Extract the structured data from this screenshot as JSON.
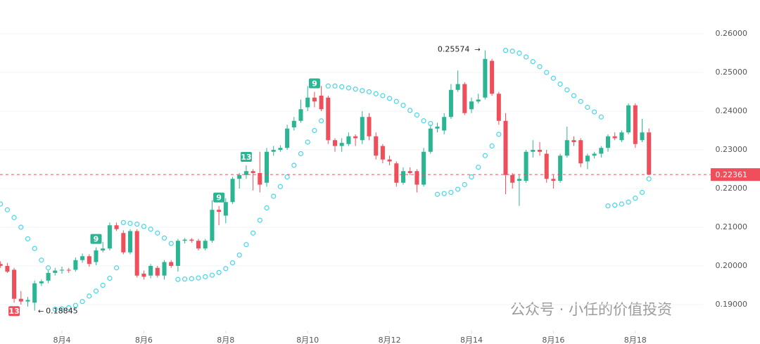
{
  "chart_data": {
    "type": "candlestick",
    "x": [
      2.5,
      2.667,
      2.833,
      3,
      3.167,
      3.333,
      3.5,
      3.667,
      3.833,
      4,
      4.167,
      4.333,
      4.5,
      4.667,
      4.833,
      5,
      5.167,
      5.333,
      5.5,
      5.667,
      5.833,
      6,
      6.167,
      6.333,
      6.5,
      6.667,
      6.833,
      7,
      7.167,
      7.333,
      7.5,
      7.667,
      7.833,
      8,
      8.167,
      8.333,
      8.5,
      8.667,
      8.833,
      9,
      9.167,
      9.333,
      9.5,
      9.667,
      9.833,
      10,
      10.167,
      10.333,
      10.5,
      10.667,
      10.833,
      11,
      11.167,
      11.333,
      11.5,
      11.667,
      11.833,
      12,
      12.167,
      12.333,
      12.5,
      12.667,
      12.833,
      13,
      13.167,
      13.333,
      13.5,
      13.667,
      13.833,
      14,
      14.167,
      14.333,
      14.5,
      14.667,
      14.833,
      15,
      15.167,
      15.333,
      15.5,
      15.667,
      15.833,
      16,
      16.167,
      16.333,
      16.5,
      16.667,
      16.833,
      17,
      17.167,
      17.333,
      17.5,
      17.667,
      17.833,
      18,
      18.167,
      18.333
    ],
    "candles": [
      [
        0.2005,
        0.2012,
        0.1995,
        0.2
      ],
      [
        0.2,
        0.2008,
        0.1982,
        0.1985
      ],
      [
        0.199,
        0.1995,
        0.1905,
        0.1915
      ],
      [
        0.1915,
        0.1935,
        0.19,
        0.1908
      ],
      [
        0.1908,
        0.192,
        0.1895,
        0.1912
      ],
      [
        0.1905,
        0.1962,
        0.18845,
        0.1955
      ],
      [
        0.1955,
        0.1965,
        0.1948,
        0.196
      ],
      [
        0.1962,
        0.199,
        0.1955,
        0.1982
      ],
      [
        0.1982,
        0.1995,
        0.1975,
        0.1988
      ],
      [
        0.1988,
        0.1998,
        0.198,
        0.199
      ],
      [
        0.199,
        0.1995,
        0.1982,
        0.1988
      ],
      [
        0.199,
        0.2022,
        0.1985,
        0.2015
      ],
      [
        0.2015,
        0.2032,
        0.2008,
        0.2025
      ],
      [
        0.2025,
        0.203,
        0.1998,
        0.2005
      ],
      [
        0.201,
        0.2048,
        0.2002,
        0.204
      ],
      [
        0.204,
        0.2062,
        0.2035,
        0.2045
      ],
      [
        0.2045,
        0.2112,
        0.204,
        0.2105
      ],
      [
        0.2105,
        0.2112,
        0.209,
        0.2095
      ],
      [
        0.2085,
        0.2092,
        0.203,
        0.2035
      ],
      [
        0.2035,
        0.2095,
        0.203,
        0.209
      ],
      [
        0.209,
        0.2095,
        0.197,
        0.1975
      ],
      [
        0.198,
        0.1988,
        0.1965,
        0.1972
      ],
      [
        0.1975,
        0.2005,
        0.1968,
        0.2
      ],
      [
        0.1995,
        0.2,
        0.197,
        0.1975
      ],
      [
        0.1975,
        0.2015,
        0.1965,
        0.201
      ],
      [
        0.201,
        0.2015,
        0.1995,
        0.2
      ],
      [
        0.2,
        0.207,
        0.1985,
        0.2065
      ],
      [
        0.2065,
        0.2072,
        0.2058,
        0.2068
      ],
      [
        0.2068,
        0.2072,
        0.206,
        0.2065
      ],
      [
        0.2065,
        0.207,
        0.204,
        0.2045
      ],
      [
        0.2045,
        0.207,
        0.204,
        0.2065
      ],
      [
        0.2065,
        0.217,
        0.206,
        0.2145
      ],
      [
        0.2145,
        0.2155,
        0.2105,
        0.214
      ],
      [
        0.213,
        0.2175,
        0.211,
        0.2165
      ],
      [
        0.2165,
        0.223,
        0.216,
        0.2225
      ],
      [
        0.2225,
        0.224,
        0.22,
        0.2235
      ],
      [
        0.2235,
        0.226,
        0.2225,
        0.2245
      ],
      [
        0.2245,
        0.225,
        0.2195,
        0.224
      ],
      [
        0.224,
        0.2295,
        0.219,
        0.221
      ],
      [
        0.2215,
        0.2305,
        0.2205,
        0.2295
      ],
      [
        0.2295,
        0.231,
        0.2285,
        0.23
      ],
      [
        0.23,
        0.2312,
        0.2295,
        0.2305
      ],
      [
        0.2305,
        0.2365,
        0.23,
        0.2355
      ],
      [
        0.2358,
        0.2385,
        0.235,
        0.2375
      ],
      [
        0.2375,
        0.243,
        0.237,
        0.2405
      ],
      [
        0.241,
        0.2465,
        0.24,
        0.2435
      ],
      [
        0.2435,
        0.245,
        0.241,
        0.2425
      ],
      [
        0.244,
        0.2465,
        0.24,
        0.2405
      ],
      [
        0.2435,
        0.244,
        0.2315,
        0.2325
      ],
      [
        0.2325,
        0.233,
        0.2295,
        0.231
      ],
      [
        0.231,
        0.233,
        0.2295,
        0.2318
      ],
      [
        0.2315,
        0.2345,
        0.231,
        0.2335
      ],
      [
        0.2335,
        0.234,
        0.231,
        0.233
      ],
      [
        0.2325,
        0.24,
        0.2315,
        0.2385
      ],
      [
        0.2385,
        0.2395,
        0.2325,
        0.2335
      ],
      [
        0.2335,
        0.2345,
        0.2275,
        0.2285
      ],
      [
        0.231,
        0.2315,
        0.2265,
        0.2275
      ],
      [
        0.2275,
        0.2285,
        0.226,
        0.227
      ],
      [
        0.2265,
        0.227,
        0.2205,
        0.2215
      ],
      [
        0.2215,
        0.2255,
        0.221,
        0.2245
      ],
      [
        0.2245,
        0.2255,
        0.2235,
        0.224
      ],
      [
        0.2245,
        0.225,
        0.219,
        0.221
      ],
      [
        0.221,
        0.2305,
        0.2205,
        0.2295
      ],
      [
        0.2295,
        0.2365,
        0.229,
        0.2355
      ],
      [
        0.2355,
        0.237,
        0.2345,
        0.236
      ],
      [
        0.235,
        0.2395,
        0.234,
        0.2385
      ],
      [
        0.2385,
        0.247,
        0.238,
        0.2455
      ],
      [
        0.2455,
        0.2505,
        0.245,
        0.247
      ],
      [
        0.247,
        0.2475,
        0.239,
        0.2395
      ],
      [
        0.2405,
        0.2435,
        0.2395,
        0.2425
      ],
      [
        0.2425,
        0.2445,
        0.242,
        0.243
      ],
      [
        0.2435,
        0.25574,
        0.243,
        0.2535
      ],
      [
        0.253,
        0.2535,
        0.244,
        0.2445
      ],
      [
        0.2445,
        0.245,
        0.2365,
        0.2375
      ],
      [
        0.2375,
        0.2395,
        0.2185,
        0.2235
      ],
      [
        0.2235,
        0.224,
        0.22,
        0.2215
      ],
      [
        0.222,
        0.2235,
        0.2155,
        0.2225
      ],
      [
        0.222,
        0.23,
        0.2215,
        0.2295
      ],
      [
        0.2295,
        0.2325,
        0.228,
        0.23
      ],
      [
        0.23,
        0.232,
        0.2285,
        0.2295
      ],
      [
        0.229,
        0.23,
        0.2215,
        0.2225
      ],
      [
        0.2225,
        0.2235,
        0.22,
        0.222
      ],
      [
        0.222,
        0.229,
        0.2215,
        0.2285
      ],
      [
        0.2285,
        0.236,
        0.228,
        0.2325
      ],
      [
        0.2325,
        0.2335,
        0.231,
        0.232
      ],
      [
        0.2325,
        0.233,
        0.2255,
        0.2265
      ],
      [
        0.227,
        0.229,
        0.225,
        0.2285
      ],
      [
        0.2285,
        0.2295,
        0.2278,
        0.229
      ],
      [
        0.229,
        0.231,
        0.228,
        0.2305
      ],
      [
        0.2305,
        0.234,
        0.2295,
        0.2335
      ],
      [
        0.2335,
        0.2345,
        0.2325,
        0.233
      ],
      [
        0.2325,
        0.235,
        0.232,
        0.2345
      ],
      [
        0.2345,
        0.242,
        0.234,
        0.2415
      ],
      [
        0.2415,
        0.242,
        0.2305,
        0.2315
      ],
      [
        0.2325,
        0.238,
        0.232,
        0.2345
      ],
      [
        0.2345,
        0.2355,
        0.22361,
        0.22361
      ]
    ],
    "sar": [
      0.216,
      0.2145,
      0.2125,
      0.21,
      0.207,
      0.2045,
      0.2015,
      0.1995,
      0.1888,
      0.1889,
      0.1892,
      0.1898,
      0.1908,
      0.1922,
      0.1935,
      0.195,
      0.1968,
      0.1995,
      0.2112,
      0.211,
      0.2108,
      0.2102,
      0.2095,
      0.2085,
      0.2072,
      0.2058,
      0.1965,
      0.1966,
      0.1967,
      0.1969,
      0.1972,
      0.1976,
      0.1983,
      0.1993,
      0.2008,
      0.2028,
      0.2055,
      0.2085,
      0.2118,
      0.215,
      0.218,
      0.2205,
      0.223,
      0.226,
      0.229,
      0.232,
      0.235,
      0.2375,
      0.2465,
      0.2465,
      0.2463,
      0.246,
      0.2457,
      0.2453,
      0.245,
      0.2445,
      0.244,
      0.2433,
      0.2425,
      0.2415,
      0.2402,
      0.239,
      0.2375,
      0.2368,
      0.2185,
      0.2187,
      0.219,
      0.2198,
      0.221,
      0.223,
      0.2255,
      0.2285,
      0.231,
      0.234,
      0.2557,
      0.2555,
      0.255,
      0.254,
      0.2528,
      0.2515,
      0.25,
      0.2485,
      0.247,
      0.2455,
      0.244,
      0.2425,
      0.241,
      0.2398,
      0.2385,
      0.2155,
      0.2157,
      0.216,
      0.2165,
      0.2175,
      0.219,
      0.2225
    ],
    "up_color": "#2bb592",
    "down_color": "#ef4f5b",
    "sar_color": "#45d6e6",
    "td_labels": [
      "13",
      "9",
      "9",
      "13",
      "9"
    ],
    "xlim": [
      2.488,
      19.67
    ],
    "ylim": [
      0.18327,
      0.26873
    ],
    "xticks": [
      {
        "value": 4,
        "label": "8月4"
      },
      {
        "value": 6,
        "label": "8月6"
      },
      {
        "value": 8,
        "label": "8月8"
      },
      {
        "value": 10,
        "label": "8月10"
      },
      {
        "value": 12,
        "label": "8月12"
      },
      {
        "value": 14,
        "label": "8月14"
      },
      {
        "value": 16,
        "label": "8月16"
      },
      {
        "value": 18,
        "label": "8月18"
      }
    ],
    "yticks": [
      {
        "value": 0.19,
        "label": "0.19000"
      },
      {
        "value": 0.2,
        "label": "0.20000"
      },
      {
        "value": 0.21,
        "label": "0.21000"
      },
      {
        "value": 0.22,
        "label": "0.22000"
      },
      {
        "value": 0.23,
        "label": "0.23000"
      },
      {
        "value": 0.24,
        "label": "0.24000"
      },
      {
        "value": 0.25,
        "label": "0.25000"
      },
      {
        "value": 0.26,
        "label": "0.26000"
      }
    ],
    "grid": true,
    "watermark": "公众号 · 小任的价值投资"
  }
}
